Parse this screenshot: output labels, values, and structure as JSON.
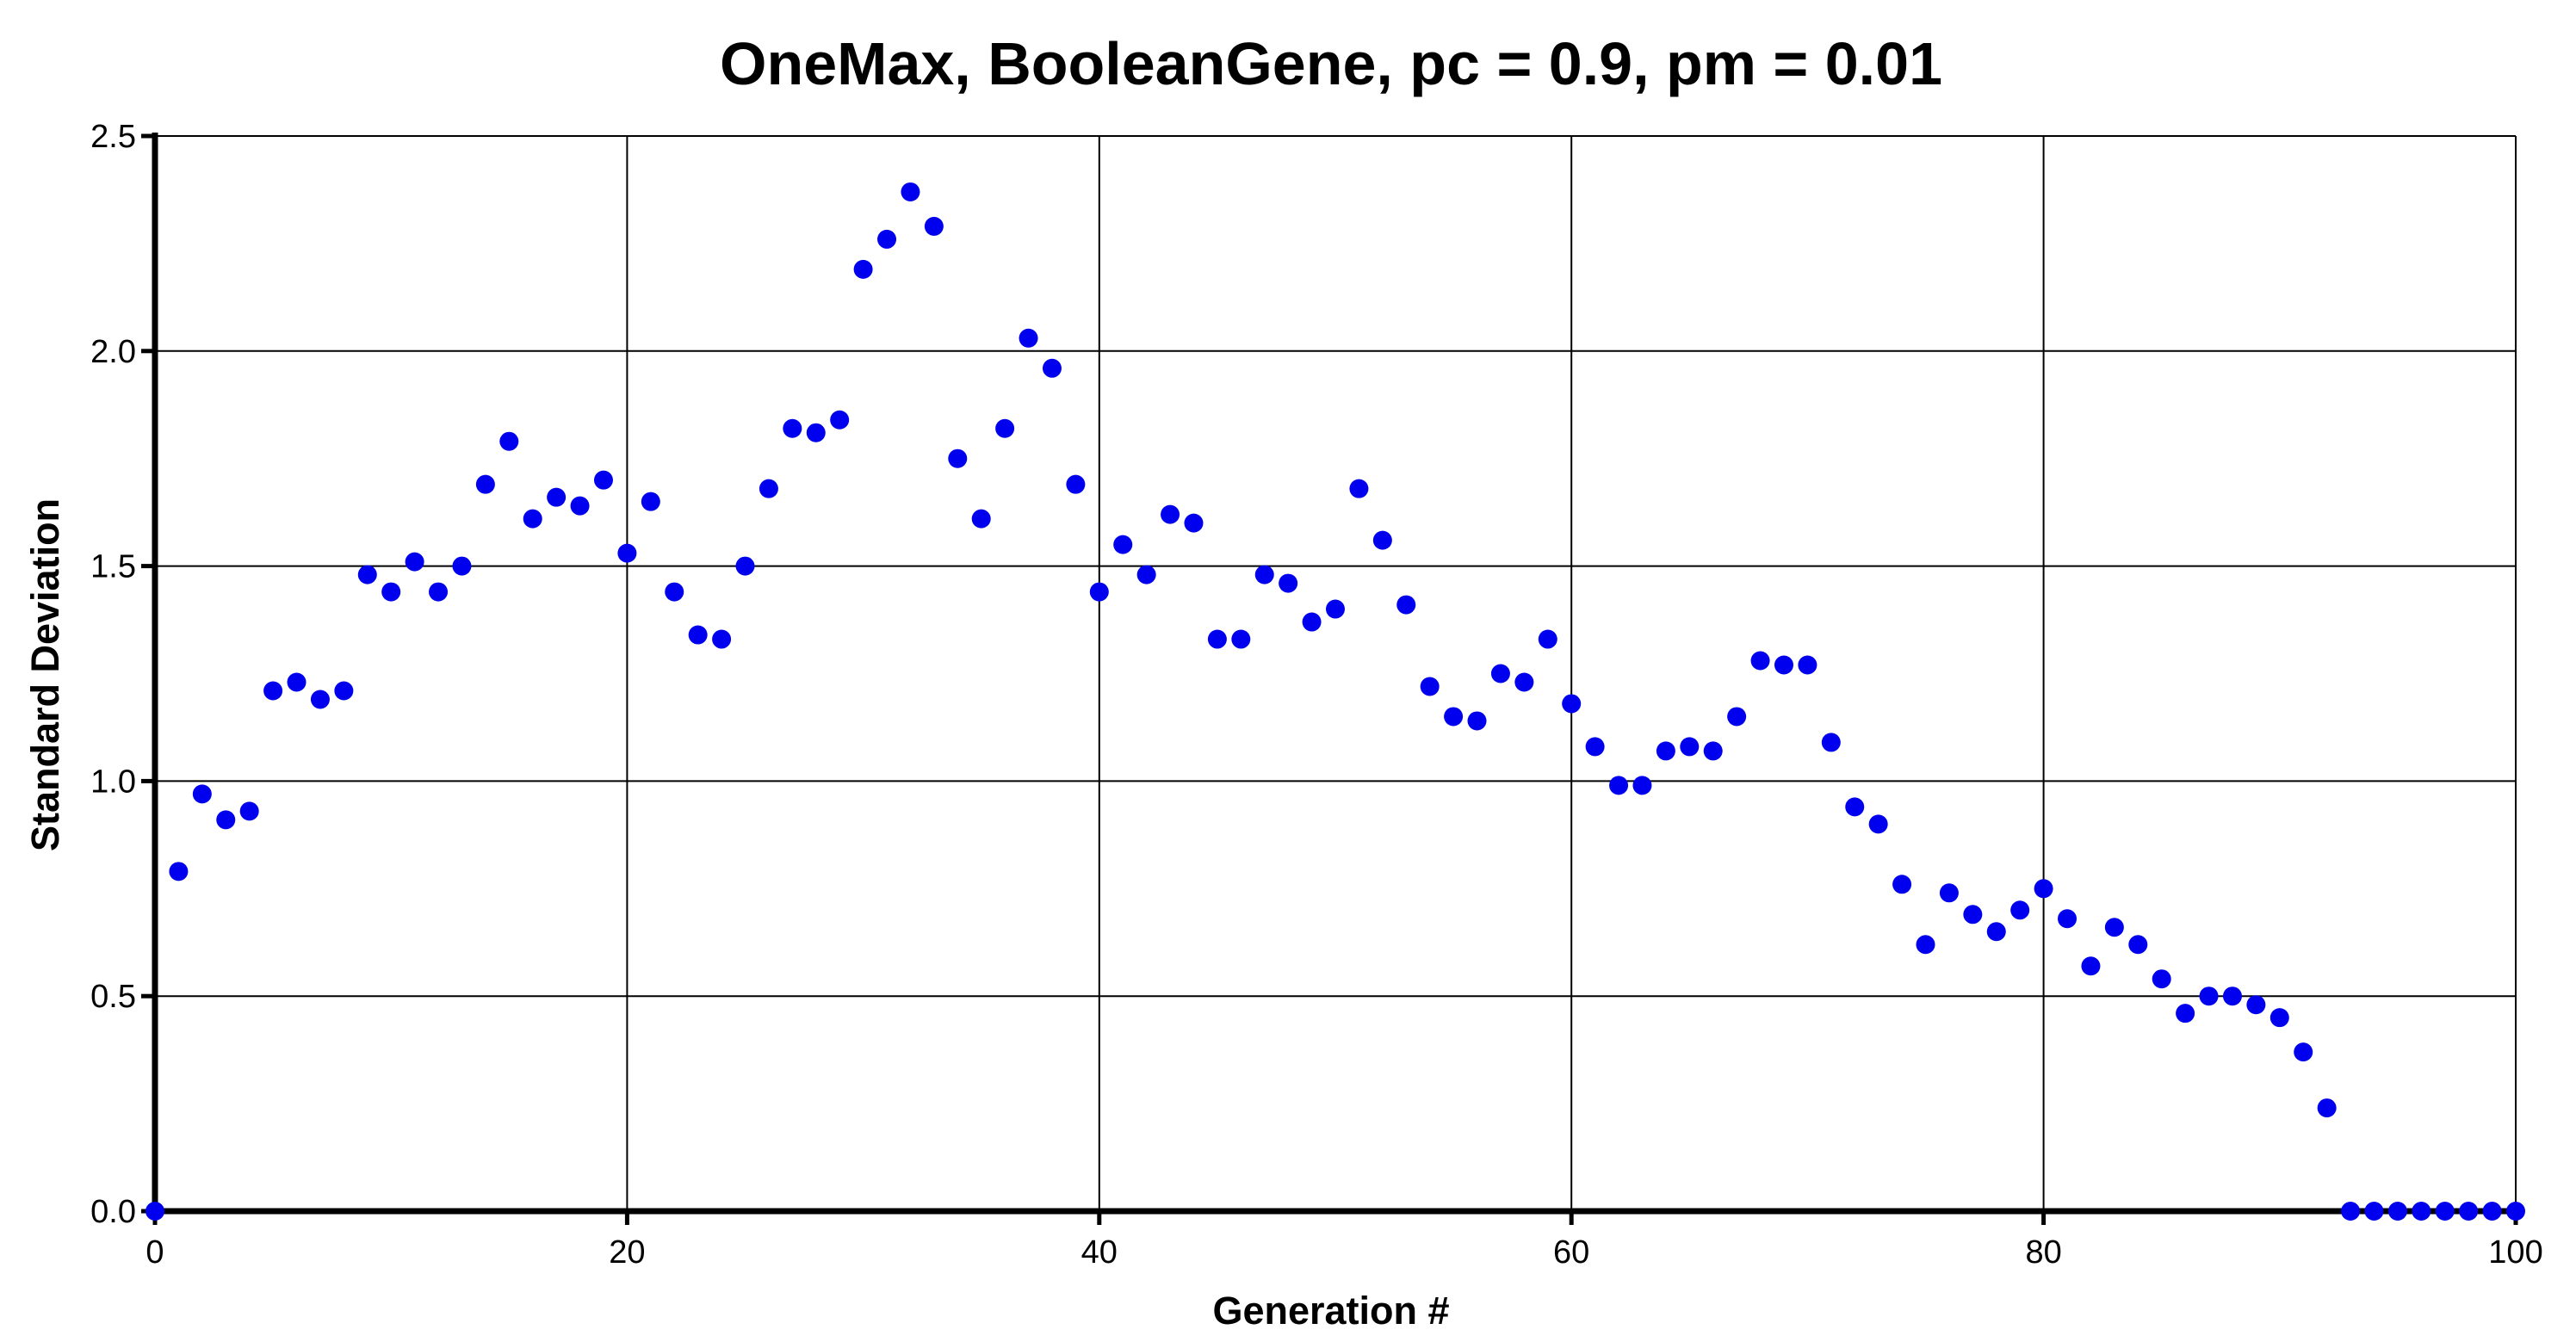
{
  "chart_data": {
    "type": "scatter",
    "title": "OneMax, BooleanGene, pc = 0.9, pm = 0.01",
    "xlabel": "Generation #",
    "ylabel": "Standard Deviation",
    "xlim": [
      0,
      100
    ],
    "ylim": [
      0,
      2.5
    ],
    "xticks": [
      0,
      20,
      40,
      60,
      80,
      100
    ],
    "xtick_labels": [
      "0",
      "20",
      "40",
      "60",
      "80",
      "100"
    ],
    "yticks": [
      0,
      0.5,
      1.0,
      1.5,
      2.0,
      2.5
    ],
    "ytick_labels": [
      "0.0",
      "0.5",
      "1.0",
      "1.5",
      "2.0",
      "2.5"
    ],
    "grid": true,
    "legend": "none",
    "marker_color": "#0000ee",
    "x": [
      0,
      1,
      2,
      3,
      4,
      5,
      6,
      7,
      8,
      9,
      10,
      11,
      12,
      13,
      14,
      15,
      16,
      17,
      18,
      19,
      20,
      21,
      22,
      23,
      24,
      25,
      26,
      27,
      28,
      29,
      30,
      31,
      32,
      33,
      34,
      35,
      36,
      37,
      38,
      39,
      40,
      41,
      42,
      43,
      44,
      45,
      46,
      47,
      48,
      49,
      50,
      51,
      52,
      53,
      54,
      55,
      56,
      57,
      58,
      59,
      60,
      61,
      62,
      63,
      64,
      65,
      66,
      67,
      68,
      69,
      70,
      71,
      72,
      73,
      74,
      75,
      76,
      77,
      78,
      79,
      80,
      81,
      82,
      83,
      84,
      85,
      86,
      87,
      88,
      89,
      90,
      91,
      92,
      93,
      94,
      95,
      96,
      97,
      98,
      99,
      100
    ],
    "y": [
      0.0,
      0.79,
      0.97,
      0.91,
      0.93,
      1.21,
      1.23,
      1.19,
      1.21,
      1.48,
      1.44,
      1.51,
      1.44,
      1.5,
      1.69,
      1.79,
      1.61,
      1.66,
      1.64,
      1.7,
      1.53,
      1.65,
      1.44,
      1.34,
      1.33,
      1.5,
      1.68,
      1.82,
      1.81,
      1.84,
      2.19,
      2.26,
      2.37,
      2.29,
      1.75,
      1.61,
      1.82,
      2.03,
      1.96,
      1.69,
      1.44,
      1.55,
      1.48,
      1.62,
      1.6,
      1.33,
      1.33,
      1.48,
      1.46,
      1.37,
      1.4,
      1.68,
      1.56,
      1.41,
      1.22,
      1.15,
      1.14,
      1.25,
      1.23,
      1.33,
      1.18,
      1.08,
      0.99,
      0.99,
      1.07,
      1.08,
      1.07,
      1.15,
      1.28,
      1.27,
      1.27,
      1.09,
      0.94,
      0.9,
      0.76,
      0.62,
      0.74,
      0.69,
      0.65,
      0.7,
      0.75,
      0.68,
      0.57,
      0.66,
      0.62,
      0.54,
      0.46,
      0.5,
      0.5,
      0.48,
      0.45,
      0.37,
      0.24,
      0.0,
      0.0,
      0.0,
      0.0,
      0.0,
      0.0,
      0.0,
      0.0
    ]
  }
}
